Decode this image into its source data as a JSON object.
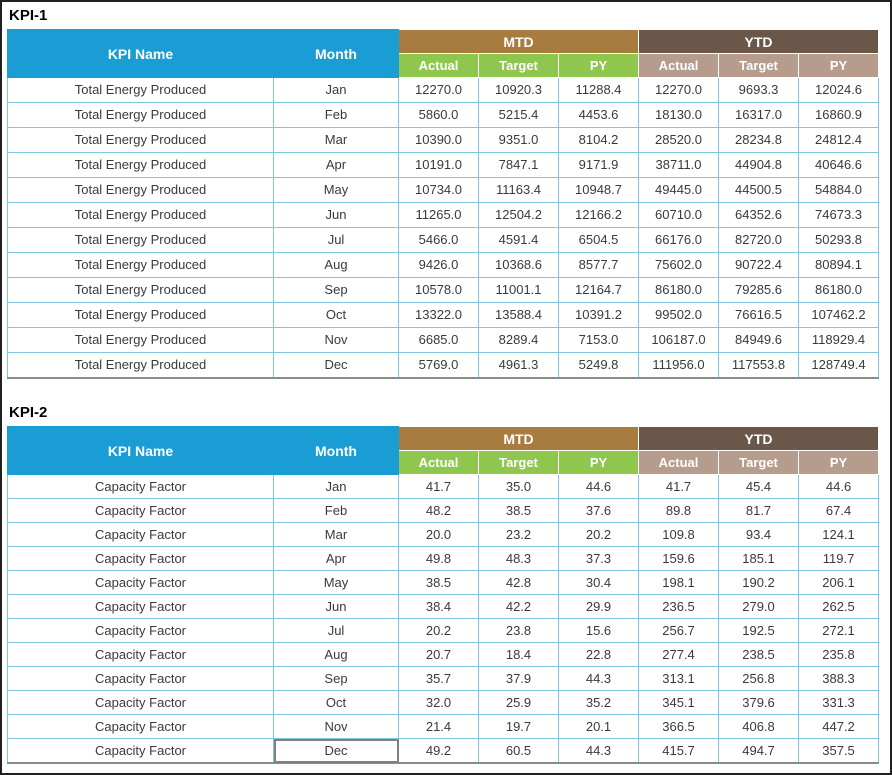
{
  "labels": {
    "kpi_name": "KPI Name",
    "month": "Month",
    "mtd": "MTD",
    "ytd": "YTD",
    "subcolumns": [
      "Actual",
      "Target",
      "PY"
    ]
  },
  "colors": {
    "header_blue": "#1A9CD4",
    "mtd_brown": "#A87B3E",
    "ytd_brown": "#6B5749",
    "mtd_sub_green": "#8FC74E",
    "ytd_sub_tan": "#B59C8D",
    "cell_border_teal": "#7FC7DE",
    "frame_dark": "#202020"
  },
  "tables": [
    {
      "title": "KPI-1",
      "kpi_name": "Total Energy Produced",
      "rows": [
        {
          "month": "Jan",
          "mtd": [
            "12270.0",
            "10920.3",
            "11288.4"
          ],
          "ytd": [
            "12270.0",
            "9693.3",
            "12024.6"
          ]
        },
        {
          "month": "Feb",
          "mtd": [
            "5860.0",
            "5215.4",
            "4453.6"
          ],
          "ytd": [
            "18130.0",
            "16317.0",
            "16860.9"
          ]
        },
        {
          "month": "Mar",
          "mtd": [
            "10390.0",
            "9351.0",
            "8104.2"
          ],
          "ytd": [
            "28520.0",
            "28234.8",
            "24812.4"
          ]
        },
        {
          "month": "Apr",
          "mtd": [
            "10191.0",
            "7847.1",
            "9171.9"
          ],
          "ytd": [
            "38711.0",
            "44904.8",
            "40646.6"
          ]
        },
        {
          "month": "May",
          "mtd": [
            "10734.0",
            "11163.4",
            "10948.7"
          ],
          "ytd": [
            "49445.0",
            "44500.5",
            "54884.0"
          ]
        },
        {
          "month": "Jun",
          "mtd": [
            "11265.0",
            "12504.2",
            "12166.2"
          ],
          "ytd": [
            "60710.0",
            "64352.6",
            "74673.3"
          ]
        },
        {
          "month": "Jul",
          "mtd": [
            "5466.0",
            "4591.4",
            "6504.5"
          ],
          "ytd": [
            "66176.0",
            "82720.0",
            "50293.8"
          ]
        },
        {
          "month": "Aug",
          "mtd": [
            "9426.0",
            "10368.6",
            "8577.7"
          ],
          "ytd": [
            "75602.0",
            "90722.4",
            "80894.1"
          ]
        },
        {
          "month": "Sep",
          "mtd": [
            "10578.0",
            "11001.1",
            "12164.7"
          ],
          "ytd": [
            "86180.0",
            "79285.6",
            "86180.0"
          ]
        },
        {
          "month": "Oct",
          "mtd": [
            "13322.0",
            "13588.4",
            "10391.2"
          ],
          "ytd": [
            "99502.0",
            "76616.5",
            "107462.2"
          ]
        },
        {
          "month": "Nov",
          "mtd": [
            "6685.0",
            "8289.4",
            "7153.0"
          ],
          "ytd": [
            "106187.0",
            "84949.6",
            "118929.4"
          ]
        },
        {
          "month": "Dec",
          "mtd": [
            "5769.0",
            "4961.3",
            "5249.8"
          ],
          "ytd": [
            "111956.0",
            "117553.8",
            "128749.4"
          ]
        }
      ]
    },
    {
      "title": "KPI-2",
      "kpi_name": "Capacity Factor",
      "selected_cell": {
        "row": 11,
        "column": "month"
      },
      "rows": [
        {
          "month": "Jan",
          "mtd": [
            "41.7",
            "35.0",
            "44.6"
          ],
          "ytd": [
            "41.7",
            "45.4",
            "44.6"
          ]
        },
        {
          "month": "Feb",
          "mtd": [
            "48.2",
            "38.5",
            "37.6"
          ],
          "ytd": [
            "89.8",
            "81.7",
            "67.4"
          ]
        },
        {
          "month": "Mar",
          "mtd": [
            "20.0",
            "23.2",
            "20.2"
          ],
          "ytd": [
            "109.8",
            "93.4",
            "124.1"
          ]
        },
        {
          "month": "Apr",
          "mtd": [
            "49.8",
            "48.3",
            "37.3"
          ],
          "ytd": [
            "159.6",
            "185.1",
            "119.7"
          ]
        },
        {
          "month": "May",
          "mtd": [
            "38.5",
            "42.8",
            "30.4"
          ],
          "ytd": [
            "198.1",
            "190.2",
            "206.1"
          ]
        },
        {
          "month": "Jun",
          "mtd": [
            "38.4",
            "42.2",
            "29.9"
          ],
          "ytd": [
            "236.5",
            "279.0",
            "262.5"
          ]
        },
        {
          "month": "Jul",
          "mtd": [
            "20.2",
            "23.8",
            "15.6"
          ],
          "ytd": [
            "256.7",
            "192.5",
            "272.1"
          ]
        },
        {
          "month": "Aug",
          "mtd": [
            "20.7",
            "18.4",
            "22.8"
          ],
          "ytd": [
            "277.4",
            "238.5",
            "235.8"
          ]
        },
        {
          "month": "Sep",
          "mtd": [
            "35.7",
            "37.9",
            "44.3"
          ],
          "ytd": [
            "313.1",
            "256.8",
            "388.3"
          ]
        },
        {
          "month": "Oct",
          "mtd": [
            "32.0",
            "25.9",
            "35.2"
          ],
          "ytd": [
            "345.1",
            "379.6",
            "331.3"
          ]
        },
        {
          "month": "Nov",
          "mtd": [
            "21.4",
            "19.7",
            "20.1"
          ],
          "ytd": [
            "366.5",
            "406.8",
            "447.2"
          ]
        },
        {
          "month": "Dec",
          "mtd": [
            "49.2",
            "60.5",
            "44.3"
          ],
          "ytd": [
            "415.7",
            "494.7",
            "357.5"
          ]
        }
      ]
    }
  ]
}
